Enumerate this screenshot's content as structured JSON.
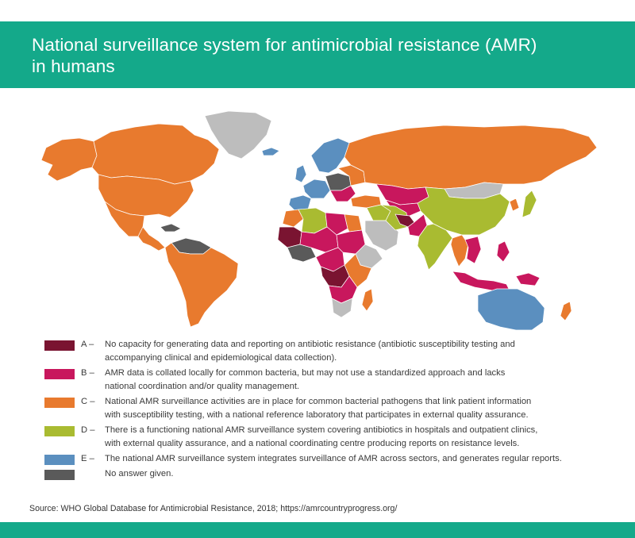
{
  "header": {
    "title_line1": "National surveillance system for antimicrobial resistance (AMR)",
    "title_line2": "in humans"
  },
  "colors": {
    "header_green": "#14a98a",
    "A": "#7a1431",
    "B": "#c8175d",
    "C": "#e87a2e",
    "D": "#a9bb31",
    "E": "#5b8fbf",
    "no_answer": "#5a5a5a",
    "no_data": "#bdbdbd"
  },
  "legend": [
    {
      "code": "A –",
      "color_key": "A",
      "line1": "No capacity for generating data and reporting on antibiotic resistance (antibiotic susceptibility testing and",
      "line2": "accompanying clinical and epidemiological data collection)."
    },
    {
      "code": "B –",
      "color_key": "B",
      "line1": "AMR data is collated locally for common bacteria, but may not use a standardized approach and lacks",
      "line2": "national coordination and/or quality management."
    },
    {
      "code": "C –",
      "color_key": "C",
      "line1": "National AMR surveillance activities are in place for common bacterial pathogens that link patient information",
      "line2": "with susceptibility testing, with a national reference laboratory that participates in external quality assurance."
    },
    {
      "code": "D –",
      "color_key": "D",
      "line1": "There is a functioning national AMR surveillance system covering antibiotics in hospitals and outpatient clinics,",
      "line2": "with external quality assurance, and a national coordinating centre producing reports on resistance levels."
    },
    {
      "code": "E –",
      "color_key": "E",
      "line1": "The national AMR surveillance system integrates surveillance of AMR across sectors, and generates regular reports.",
      "line2": ""
    },
    {
      "code": "",
      "color_key": "no_answer",
      "line1": "No answer given.",
      "line2": ""
    }
  ],
  "regions": [
    {
      "name": "alaska",
      "category": "C"
    },
    {
      "name": "canada",
      "category": "C"
    },
    {
      "name": "greenland",
      "category": "no_data"
    },
    {
      "name": "usa",
      "category": "C"
    },
    {
      "name": "mexico",
      "category": "C"
    },
    {
      "name": "central-america",
      "category": "C"
    },
    {
      "name": "caribbean",
      "category": "no_answer"
    },
    {
      "name": "venezuela-guianas",
      "category": "no_answer"
    },
    {
      "name": "south-america",
      "category": "C"
    },
    {
      "name": "iceland",
      "category": "E"
    },
    {
      "name": "scandinavia",
      "category": "E"
    },
    {
      "name": "uk",
      "category": "E"
    },
    {
      "name": "western-europe",
      "category": "E"
    },
    {
      "name": "iberia",
      "category": "E"
    },
    {
      "name": "central-europe",
      "category": "no_answer"
    },
    {
      "name": "eastern-europe",
      "category": "C"
    },
    {
      "name": "balkans",
      "category": "B"
    },
    {
      "name": "russia",
      "category": "C"
    },
    {
      "name": "kazakhstan",
      "category": "B"
    },
    {
      "name": "central-asia",
      "category": "B"
    },
    {
      "name": "mongolia",
      "category": "no_data"
    },
    {
      "name": "china",
      "category": "D"
    },
    {
      "name": "korea",
      "category": "C"
    },
    {
      "name": "japan",
      "category": "D"
    },
    {
      "name": "turkey",
      "category": "C"
    },
    {
      "name": "middle-east",
      "category": "D"
    },
    {
      "name": "saudi-arabia",
      "category": "no_data"
    },
    {
      "name": "iran",
      "category": "D"
    },
    {
      "name": "afghanistan",
      "category": "A"
    },
    {
      "name": "pakistan",
      "category": "B"
    },
    {
      "name": "india",
      "category": "D"
    },
    {
      "name": "myanmar-thailand",
      "category": "C"
    },
    {
      "name": "indochina",
      "category": "B"
    },
    {
      "name": "indonesia",
      "category": "B"
    },
    {
      "name": "philippines",
      "category": "B"
    },
    {
      "name": "papua",
      "category": "B"
    },
    {
      "name": "australia",
      "category": "E"
    },
    {
      "name": "new-zealand",
      "category": "C"
    },
    {
      "name": "morocco",
      "category": "C"
    },
    {
      "name": "algeria",
      "category": "D"
    },
    {
      "name": "libya",
      "category": "B"
    },
    {
      "name": "egypt",
      "category": "C"
    },
    {
      "name": "mauritania-mali",
      "category": "A"
    },
    {
      "name": "west-africa",
      "category": "no_answer"
    },
    {
      "name": "sahel",
      "category": "B"
    },
    {
      "name": "sudan",
      "category": "B"
    },
    {
      "name": "horn-of-africa",
      "category": "no_data"
    },
    {
      "name": "central-africa",
      "category": "B"
    },
    {
      "name": "congo",
      "category": "A"
    },
    {
      "name": "east-africa",
      "category": "C"
    },
    {
      "name": "southern-africa",
      "category": "B"
    },
    {
      "name": "south-africa",
      "category": "no_data"
    },
    {
      "name": "madagascar",
      "category": "C"
    }
  ],
  "source": "Source: WHO Global Database for Antimicrobial Resistance, 2018; https://amrcountryprogress.org/"
}
